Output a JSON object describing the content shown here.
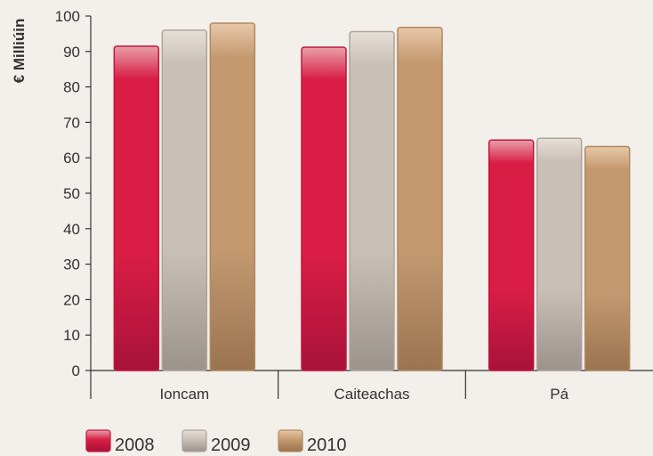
{
  "chart_data": {
    "type": "bar",
    "ylabel": "€ Milliúin",
    "xlabel": "",
    "ylim": [
      0,
      100
    ],
    "yticks": [
      0,
      10,
      20,
      30,
      40,
      50,
      60,
      70,
      80,
      90,
      100
    ],
    "categories": [
      "Ioncam",
      "Caiteachas",
      "Pá"
    ],
    "series": [
      {
        "name": "2008",
        "values": [
          91.5,
          91.2,
          65.0
        ]
      },
      {
        "name": "2009",
        "values": [
          96.0,
          95.6,
          65.5
        ]
      },
      {
        "name": "2010",
        "values": [
          98.0,
          96.8,
          63.2
        ]
      }
    ],
    "grid": false,
    "legend_position": "bottom-left",
    "colors": {
      "2008": {
        "top": "#e8a0a8",
        "main": "#d91d45",
        "bottom": "#a8123a",
        "stroke": "#c0163d"
      },
      "2009": {
        "top": "#e6dfd8",
        "main": "#c9bfb6",
        "bottom": "#9b948c",
        "stroke": "#ada59d"
      },
      "2010": {
        "top": "#e8c8a8",
        "main": "#c49970",
        "bottom": "#9a7450",
        "stroke": "#b08860"
      }
    }
  }
}
